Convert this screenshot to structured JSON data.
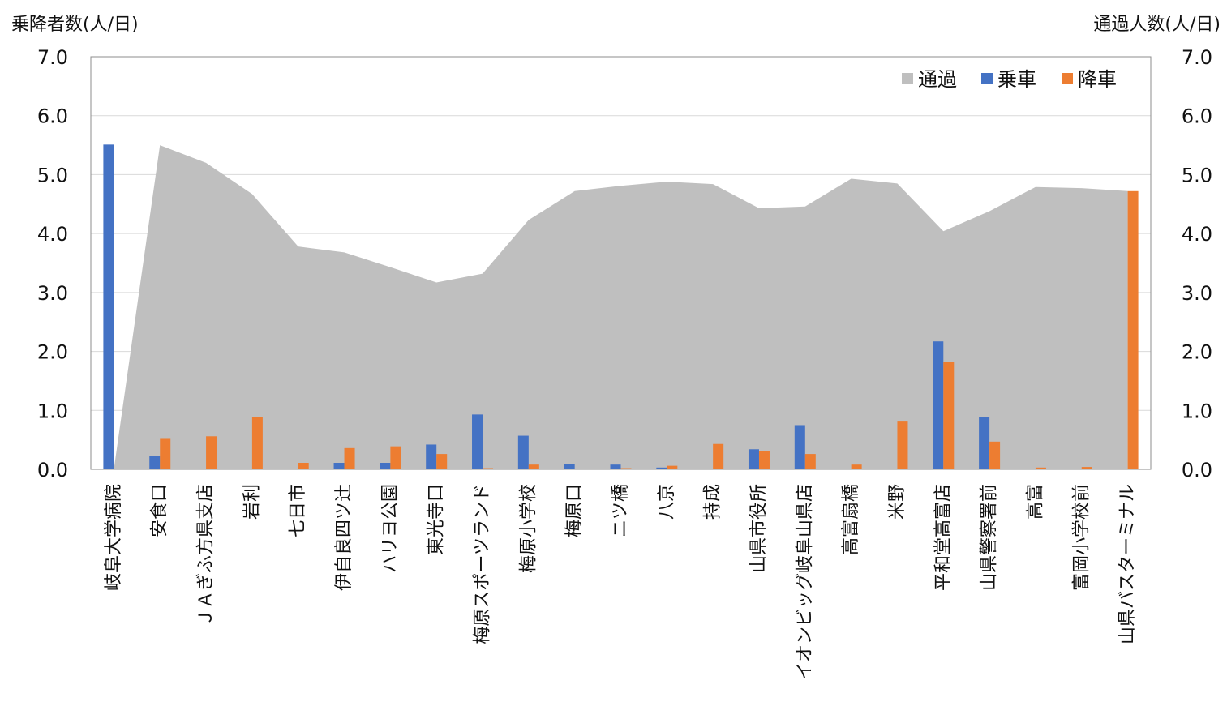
{
  "chart_data": {
    "type": "bar",
    "left_axis_title": "乗降者数(人/日)",
    "right_axis_title": "通過人数(人/日)",
    "ylim": [
      0,
      7
    ],
    "y_ticks": [
      "0.0",
      "1.0",
      "2.0",
      "3.0",
      "4.0",
      "5.0",
      "6.0",
      "7.0"
    ],
    "grid": true,
    "legend_position": "top-right",
    "categories": [
      "岐阜大学病院",
      "安食口",
      "ＪＡぎふ方県支店",
      "岩利",
      "七日市",
      "伊自良四ツ辻",
      "ハリヨ公園",
      "東光寺口",
      "梅原スポーツランド",
      "梅原小学校",
      "梅原口",
      "ニツ橋",
      "八京",
      "持成",
      "山県市役所",
      "イオンビッグ岐阜山県店",
      "高富扇橋",
      "米野",
      "平和堂高富店",
      "山県警察署前",
      "高富",
      "富岡小学校前",
      "山県バスターミナル"
    ],
    "series": [
      {
        "name": "通過",
        "kind": "area",
        "color": "#bfbfbf",
        "values": [
          0,
          5.5,
          5.2,
          4.67,
          3.78,
          3.68,
          3.43,
          3.17,
          3.32,
          4.23,
          4.72,
          4.81,
          4.88,
          4.84,
          4.43,
          4.46,
          4.93,
          4.85,
          4.04,
          4.38,
          4.79,
          4.77,
          4.72
        ]
      },
      {
        "name": "乗車",
        "kind": "bar",
        "color": "#4472c4",
        "values": [
          5.51,
          0.23,
          0.0,
          0.0,
          0.0,
          0.11,
          0.11,
          0.42,
          0.93,
          0.57,
          0.09,
          0.08,
          0.03,
          0.0,
          0.34,
          0.75,
          0.0,
          0.0,
          2.17,
          0.88,
          0.0,
          0.0,
          0.0
        ]
      },
      {
        "name": "降車",
        "kind": "bar",
        "color": "#ed7d31",
        "values": [
          0.0,
          0.53,
          0.56,
          0.89,
          0.11,
          0.36,
          0.39,
          0.26,
          0.02,
          0.08,
          0.0,
          0.02,
          0.06,
          0.43,
          0.31,
          0.26,
          0.08,
          0.81,
          1.82,
          0.47,
          0.03,
          0.04,
          4.72
        ]
      }
    ]
  }
}
